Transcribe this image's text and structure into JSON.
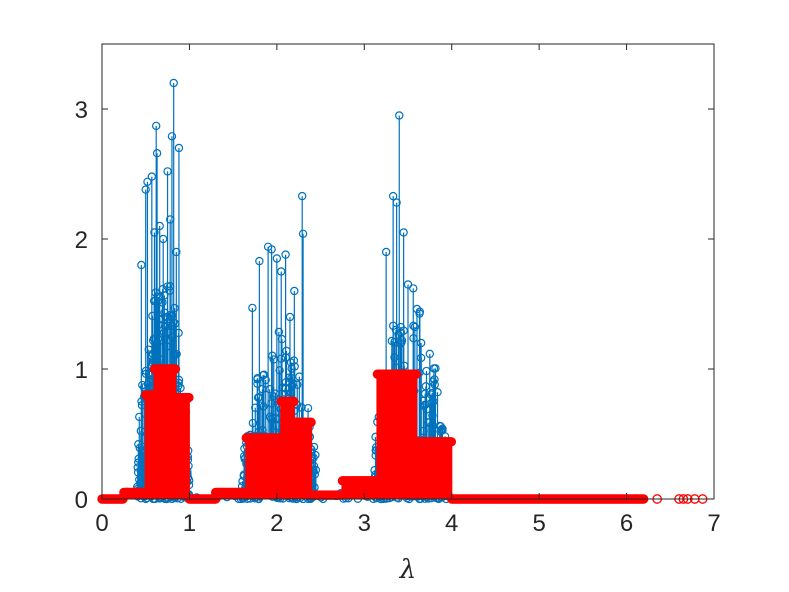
{
  "chart_data": {
    "type": "stem",
    "title": "",
    "xlabel": "λ",
    "ylabel": "",
    "xlim": [
      0,
      7
    ],
    "ylim": [
      0,
      3.5
    ],
    "xticks": [
      0,
      1,
      2,
      3,
      4,
      5,
      6,
      7
    ],
    "xtick_labels": [
      "0",
      "1",
      "2",
      "3",
      "4",
      "5",
      "6",
      "7"
    ],
    "yticks": [
      0,
      1,
      2,
      3
    ],
    "ytick_labels": [
      "0",
      "1",
      "2",
      "3"
    ],
    "grid": false,
    "legend": "none",
    "series": [
      {
        "color": "#0072BD",
        "marker": "circle",
        "clusters": [
          {
            "range": [
              0.4,
              1.0
            ],
            "typical": 1.2
          },
          {
            "range": [
              1.6,
              2.45
            ],
            "typical": 0.9
          },
          {
            "range": [
              3.1,
              3.95
            ],
            "typical": 1.1
          }
        ],
        "peaks": [
          [
            0.45,
            1.8
          ],
          [
            0.5,
            2.38
          ],
          [
            0.52,
            2.44
          ],
          [
            0.57,
            2.48
          ],
          [
            0.6,
            2.05
          ],
          [
            0.62,
            2.87
          ],
          [
            0.63,
            2.66
          ],
          [
            0.66,
            2.1
          ],
          [
            0.7,
            2.0
          ],
          [
            0.75,
            2.52
          ],
          [
            0.78,
            2.15
          ],
          [
            0.8,
            2.79
          ],
          [
            0.82,
            3.2
          ],
          [
            0.85,
            1.9
          ],
          [
            0.88,
            2.7
          ],
          [
            1.72,
            1.47
          ],
          [
            1.8,
            1.83
          ],
          [
            1.9,
            1.94
          ],
          [
            1.94,
            1.92
          ],
          [
            2.0,
            1.85
          ],
          [
            2.05,
            1.75
          ],
          [
            2.1,
            1.88
          ],
          [
            2.15,
            1.4
          ],
          [
            2.2,
            1.6
          ],
          [
            2.29,
            2.33
          ],
          [
            2.3,
            2.04
          ],
          [
            3.25,
            1.9
          ],
          [
            3.33,
            2.33
          ],
          [
            3.37,
            2.28
          ],
          [
            3.4,
            2.95
          ],
          [
            3.45,
            2.05
          ],
          [
            3.5,
            1.65
          ],
          [
            3.56,
            1.62
          ],
          [
            3.65,
            1.2
          ]
        ]
      },
      {
        "color": "#FF0000",
        "marker": "circle",
        "filled": true,
        "blocks": [
          [
            0,
            0.25,
            0.0
          ],
          [
            0.25,
            0.5,
            0.05
          ],
          [
            0.5,
            0.6,
            0.8
          ],
          [
            0.6,
            0.85,
            1.0
          ],
          [
            0.85,
            1.0,
            0.78
          ],
          [
            1.0,
            1.3,
            0.0
          ],
          [
            1.3,
            1.65,
            0.05
          ],
          [
            1.65,
            2.05,
            0.47
          ],
          [
            2.05,
            2.2,
            0.75
          ],
          [
            2.2,
            2.4,
            0.59
          ],
          [
            2.4,
            2.75,
            0.03
          ],
          [
            2.75,
            3.15,
            0.14
          ],
          [
            3.15,
            3.6,
            0.96
          ],
          [
            3.6,
            4.0,
            0.44
          ],
          [
            4.0,
            6.2,
            0.0
          ]
        ],
        "outliers": [
          6.35,
          6.6,
          6.65,
          6.7,
          6.78,
          6.87
        ]
      }
    ]
  }
}
